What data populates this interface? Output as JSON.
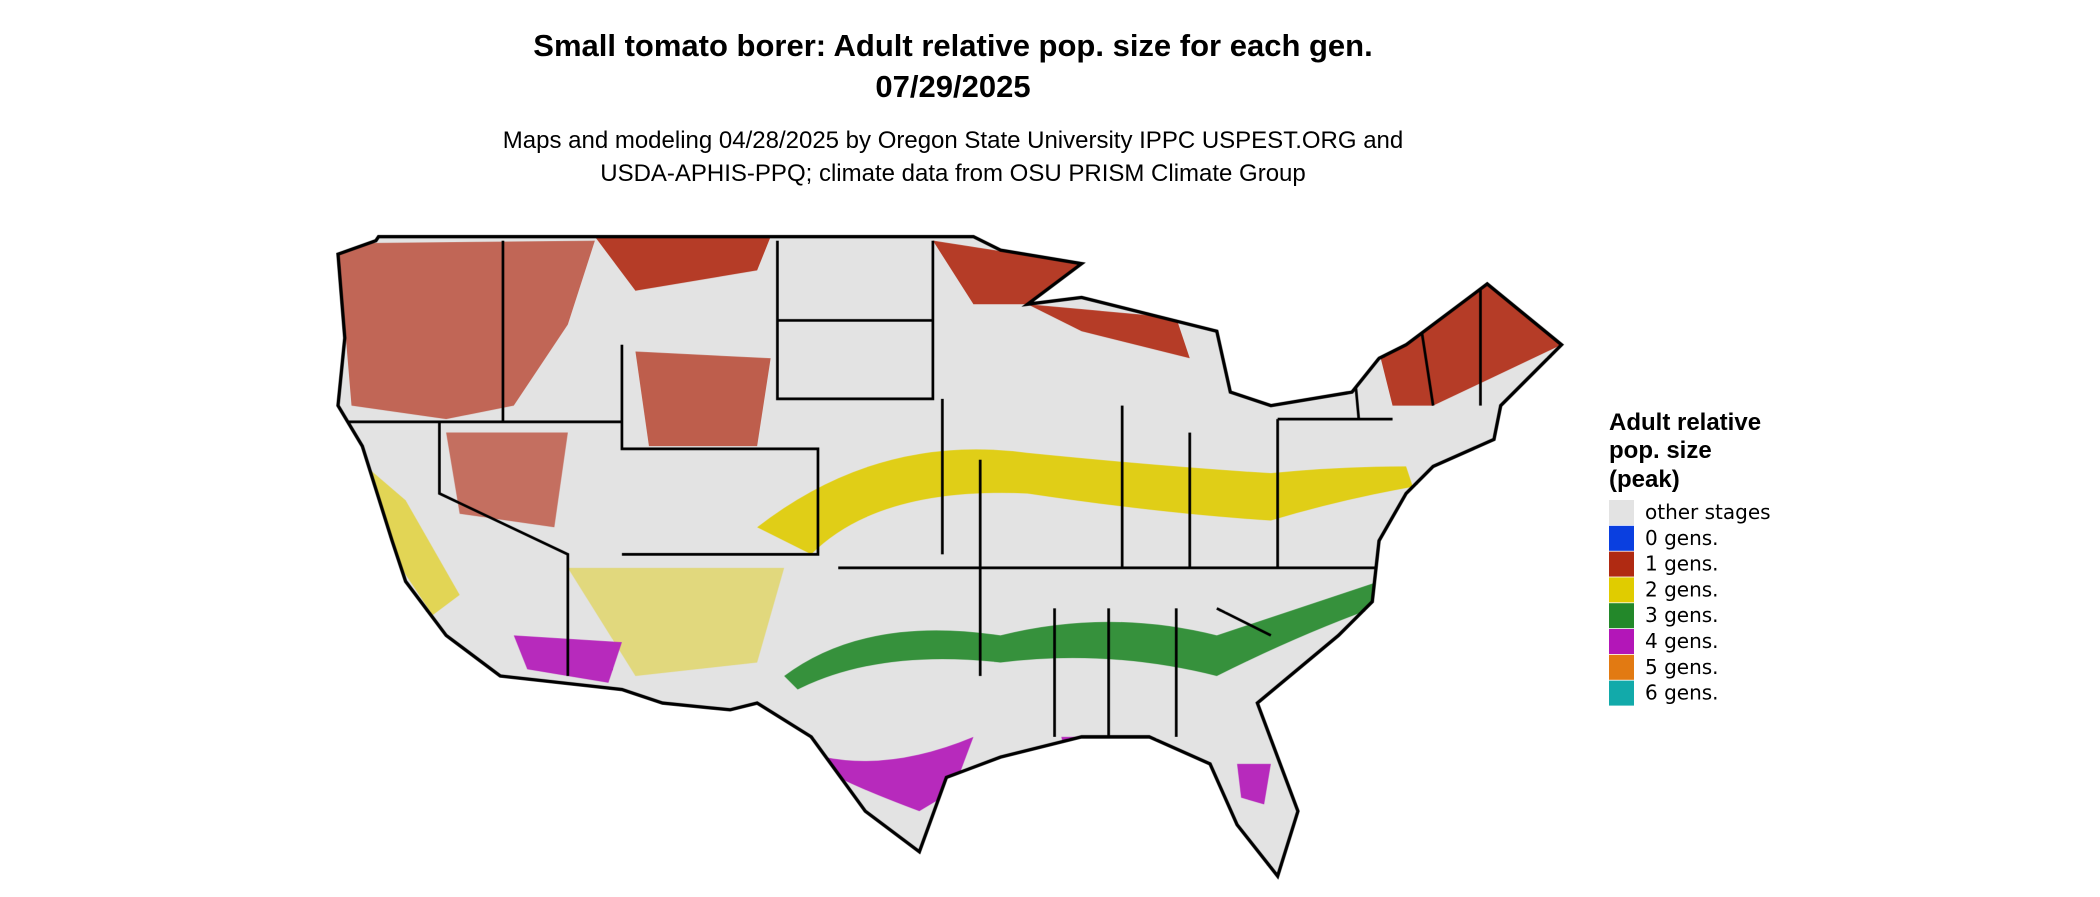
{
  "header": {
    "title_line1": "Small tomato borer: Adult relative pop. size for each gen.",
    "title_line2": "07/29/2025",
    "subtitle_line1": "Maps and modeling 04/28/2025 by Oregon State University IPPC USPEST.ORG and",
    "subtitle_line2": "USDA-APHIS-PPQ; climate data from OSU PRISM Climate Group"
  },
  "legend": {
    "title_line1": "Adult relative",
    "title_line2": "pop. size",
    "title_line3": "(peak)",
    "items": [
      {
        "label": "other stages",
        "color": "#e3e3e3"
      },
      {
        "label": "0 gens.",
        "color": "#0a3fe0"
      },
      {
        "label": "1 gens.",
        "color": "#b02a12"
      },
      {
        "label": "2 gens.",
        "color": "#e0cc00"
      },
      {
        "label": "3 gens.",
        "color": "#23882a"
      },
      {
        "label": "4 gens.",
        "color": "#b316b8"
      },
      {
        "label": "5 gens.",
        "color": "#e27a12"
      },
      {
        "label": "6 gens.",
        "color": "#12aaaa"
      }
    ]
  }
}
